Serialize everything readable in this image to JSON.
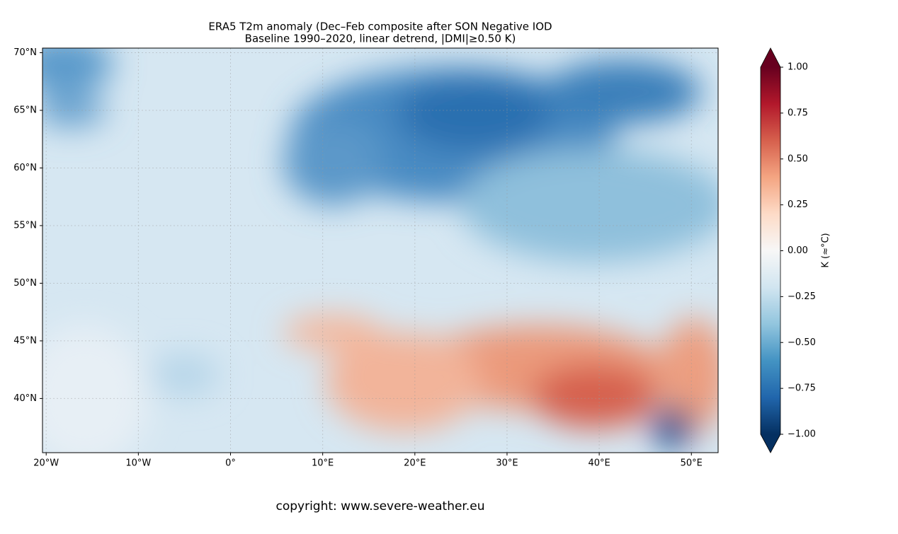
{
  "chart_data": {
    "type": "map",
    "title": "ERA5 T2m anomaly (Dec–Feb composite after SON Negative IOD",
    "subtitle": "Baseline 1990–2020, linear detrend, |DMI|≥0.50 K)",
    "xlim": [
      -20.4,
      52.9
    ],
    "ylim": [
      35.3,
      70.4
    ],
    "xticks": [
      {
        "value": -20,
        "label": "20°W"
      },
      {
        "value": -10,
        "label": "10°W"
      },
      {
        "value": 0,
        "label": "0°"
      },
      {
        "value": 10,
        "label": "10°E"
      },
      {
        "value": 20,
        "label": "20°E"
      },
      {
        "value": 30,
        "label": "30°E"
      },
      {
        "value": 40,
        "label": "40°E"
      },
      {
        "value": 50,
        "label": "50°E"
      }
    ],
    "yticks": [
      {
        "value": 40,
        "label": "40°N"
      },
      {
        "value": 45,
        "label": "45°N"
      },
      {
        "value": 50,
        "label": "50°N"
      },
      {
        "value": 55,
        "label": "55°N"
      },
      {
        "value": 60,
        "label": "60°N"
      },
      {
        "value": 65,
        "label": "65°N"
      },
      {
        "value": 70,
        "label": "70°N"
      }
    ],
    "grid": true,
    "colorbar": {
      "label": "K (≈°C)",
      "lim": [
        -1,
        1
      ],
      "ticks": [
        {
          "value": -1,
          "label": "−1.00"
        },
        {
          "value": -0.75,
          "label": "−0.75"
        },
        {
          "value": -0.5,
          "label": "−0.50"
        },
        {
          "value": -0.25,
          "label": "−0.25"
        },
        {
          "value": 0,
          "label": "0.00"
        },
        {
          "value": 0.25,
          "label": "0.25"
        },
        {
          "value": 0.5,
          "label": "0.50"
        },
        {
          "value": 0.75,
          "label": "0.75"
        },
        {
          "value": 1,
          "label": "1.00"
        }
      ],
      "colors": [
        "#053061",
        "#2166ac",
        "#4393c3",
        "#92c5de",
        "#d1e5f0",
        "#f7f7f7",
        "#fddbc7",
        "#f4a582",
        "#d6604d",
        "#b2182b",
        "#67001f"
      ]
    },
    "copyright": "copyright: www.severe-weather.eu"
  }
}
